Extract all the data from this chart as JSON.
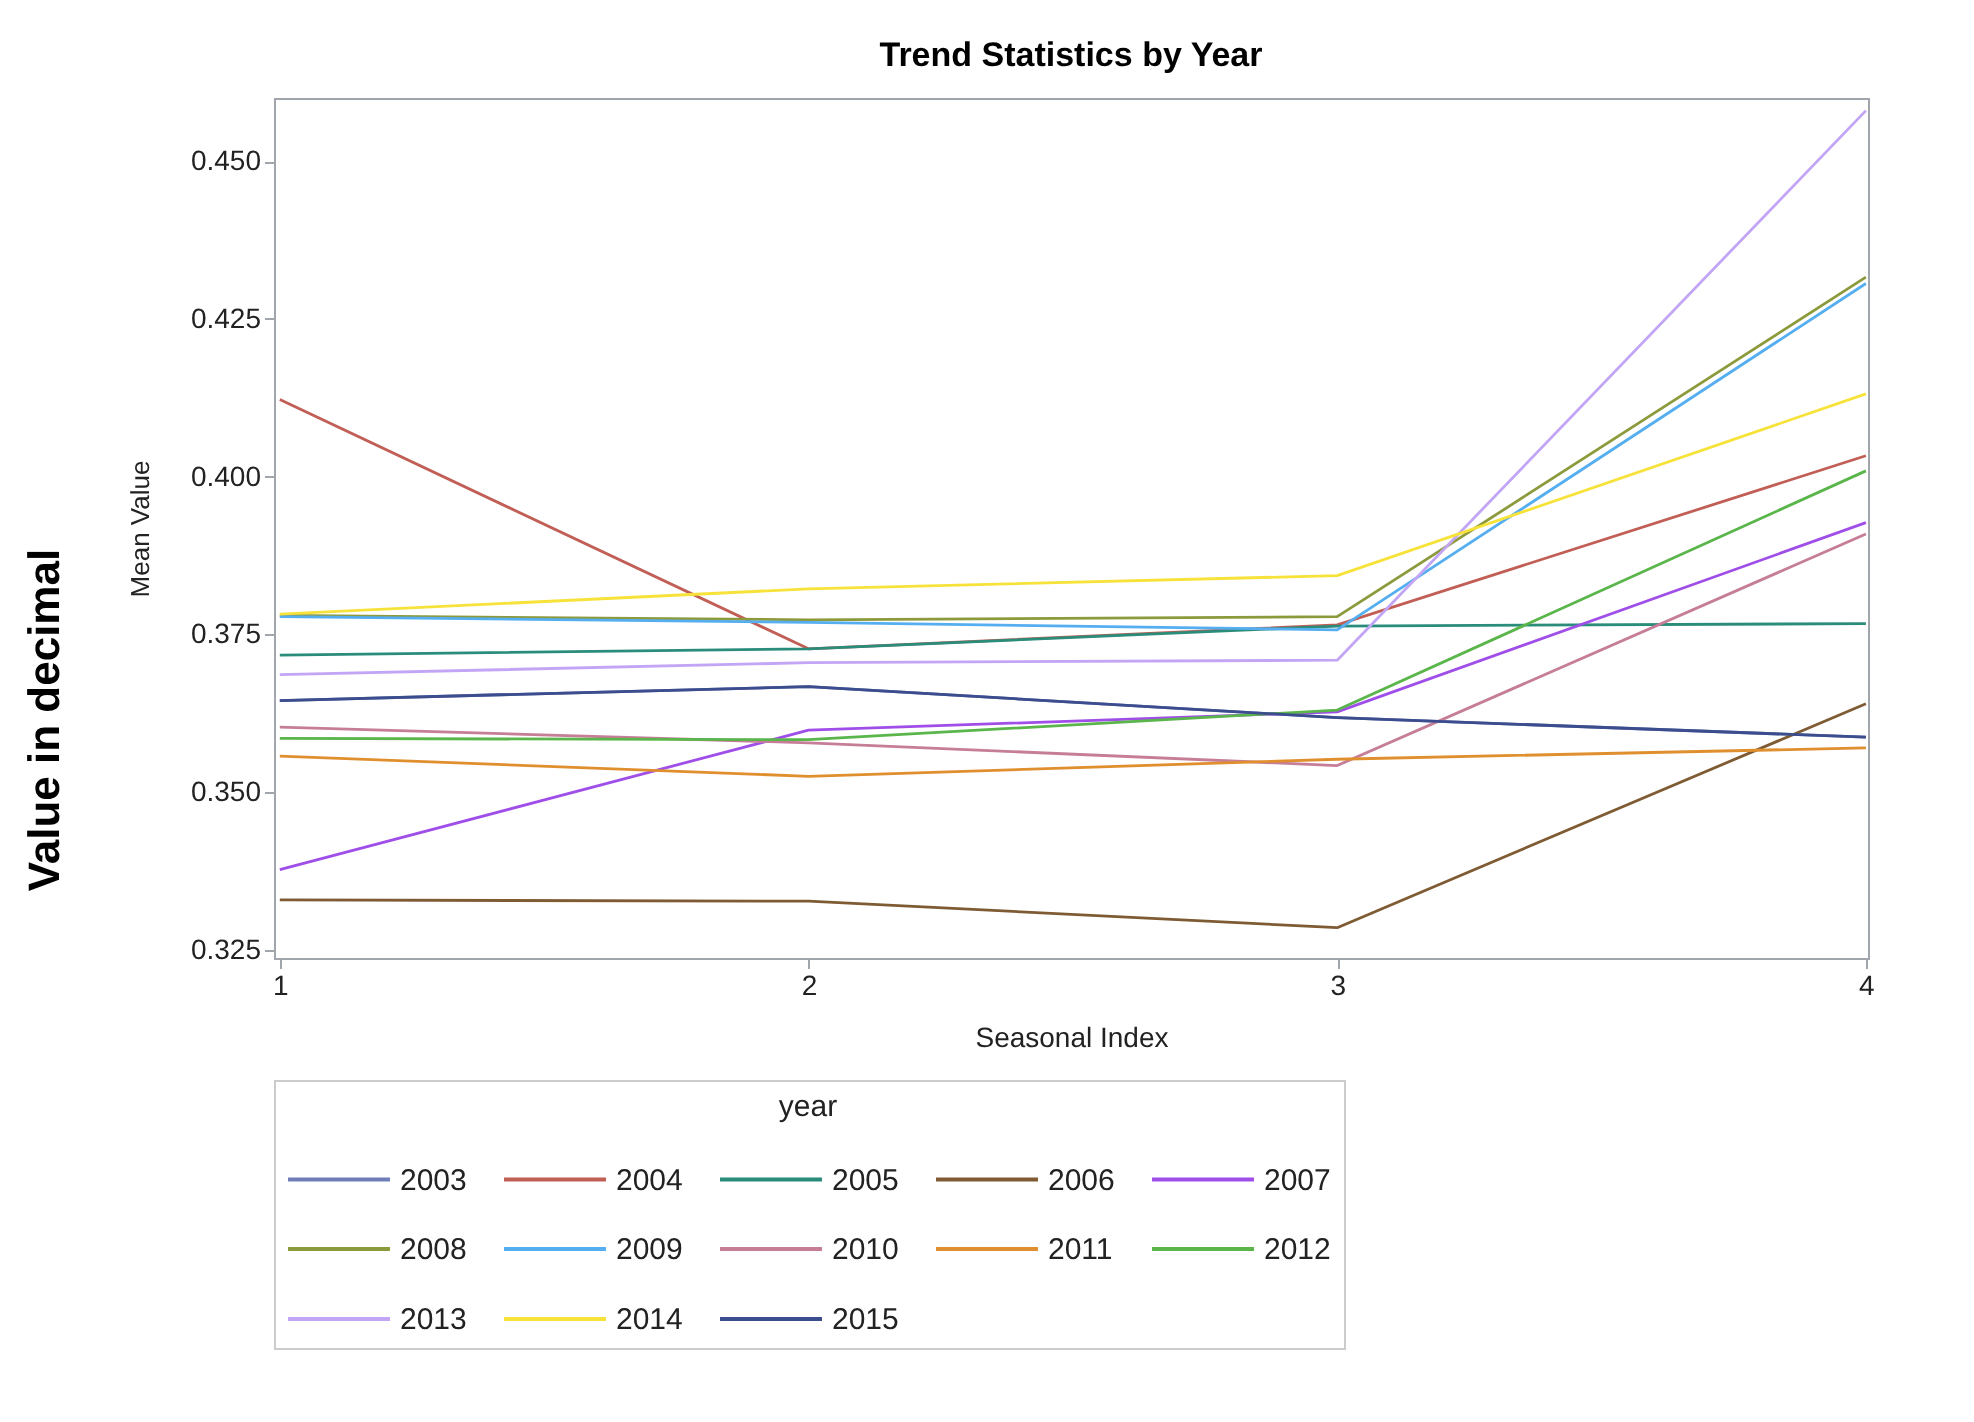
{
  "chart_data": {
    "type": "line",
    "title": "Trend Statistics by Year",
    "xlabel": "Seasonal Index",
    "ylabel": "Mean Value",
    "legend_title": "year",
    "annotations": [
      "Value in decimal"
    ],
    "x": [
      1,
      2,
      3,
      4
    ],
    "xlim": [
      0.989,
      4.004
    ],
    "xticks": [
      1,
      2,
      3,
      4
    ],
    "ylim": [
      0.3237,
      0.46
    ],
    "yticks": [
      0.325,
      {
        "value": 0.35,
        "label": "0.350"
      },
      0.375,
      {
        "value": 0.4,
        "label": "0.400"
      },
      0.425,
      {
        "value": 0.45,
        "label": "0.450"
      }
    ],
    "grid": false,
    "legend": "bottom",
    "marker": "none",
    "line_style": "solid",
    "series": [
      {
        "name": "2003",
        "color": "#6f7eb7",
        "values": [
          0.3645,
          0.3667,
          0.3618,
          0.3587
        ]
      },
      {
        "name": "2004",
        "color": "#c15e55",
        "values": [
          0.4122,
          0.3727,
          0.3765,
          0.4033
        ]
      },
      {
        "name": "2005",
        "color": "#2a8c7a",
        "values": [
          0.3717,
          0.3727,
          0.3763,
          0.3767
        ]
      },
      {
        "name": "2006",
        "color": "#7f5b34",
        "values": [
          0.3329,
          0.3327,
          0.3285,
          0.364
        ]
      },
      {
        "name": "2007",
        "color": "#a04ee8",
        "values": [
          0.3377,
          0.3598,
          0.3627,
          0.3927
        ]
      },
      {
        "name": "2008",
        "color": "#8d9a3c",
        "values": [
          0.378,
          0.3773,
          0.3778,
          0.4316
        ]
      },
      {
        "name": "2009",
        "color": "#55aef0",
        "values": [
          0.3778,
          0.3769,
          0.3757,
          0.4306
        ]
      },
      {
        "name": "2010",
        "color": "#c57d98",
        "values": [
          0.3603,
          0.3578,
          0.3542,
          0.3909
        ]
      },
      {
        "name": "2011",
        "color": "#e08f2e",
        "values": [
          0.3557,
          0.3525,
          0.3552,
          0.357
        ]
      },
      {
        "name": "2012",
        "color": "#5ab54b",
        "values": [
          0.3585,
          0.3583,
          0.363,
          0.4009
        ]
      },
      {
        "name": "2013",
        "color": "#c3a5f5",
        "values": [
          0.3686,
          0.3705,
          0.3709,
          0.458
        ]
      },
      {
        "name": "2014",
        "color": "#f7e23a",
        "values": [
          0.3782,
          0.3822,
          0.3843,
          0.4131
        ]
      },
      {
        "name": "2015",
        "color": "#3c4d8e",
        "values": [
          0.3645,
          0.3667,
          0.3618,
          0.3587
        ]
      }
    ]
  }
}
